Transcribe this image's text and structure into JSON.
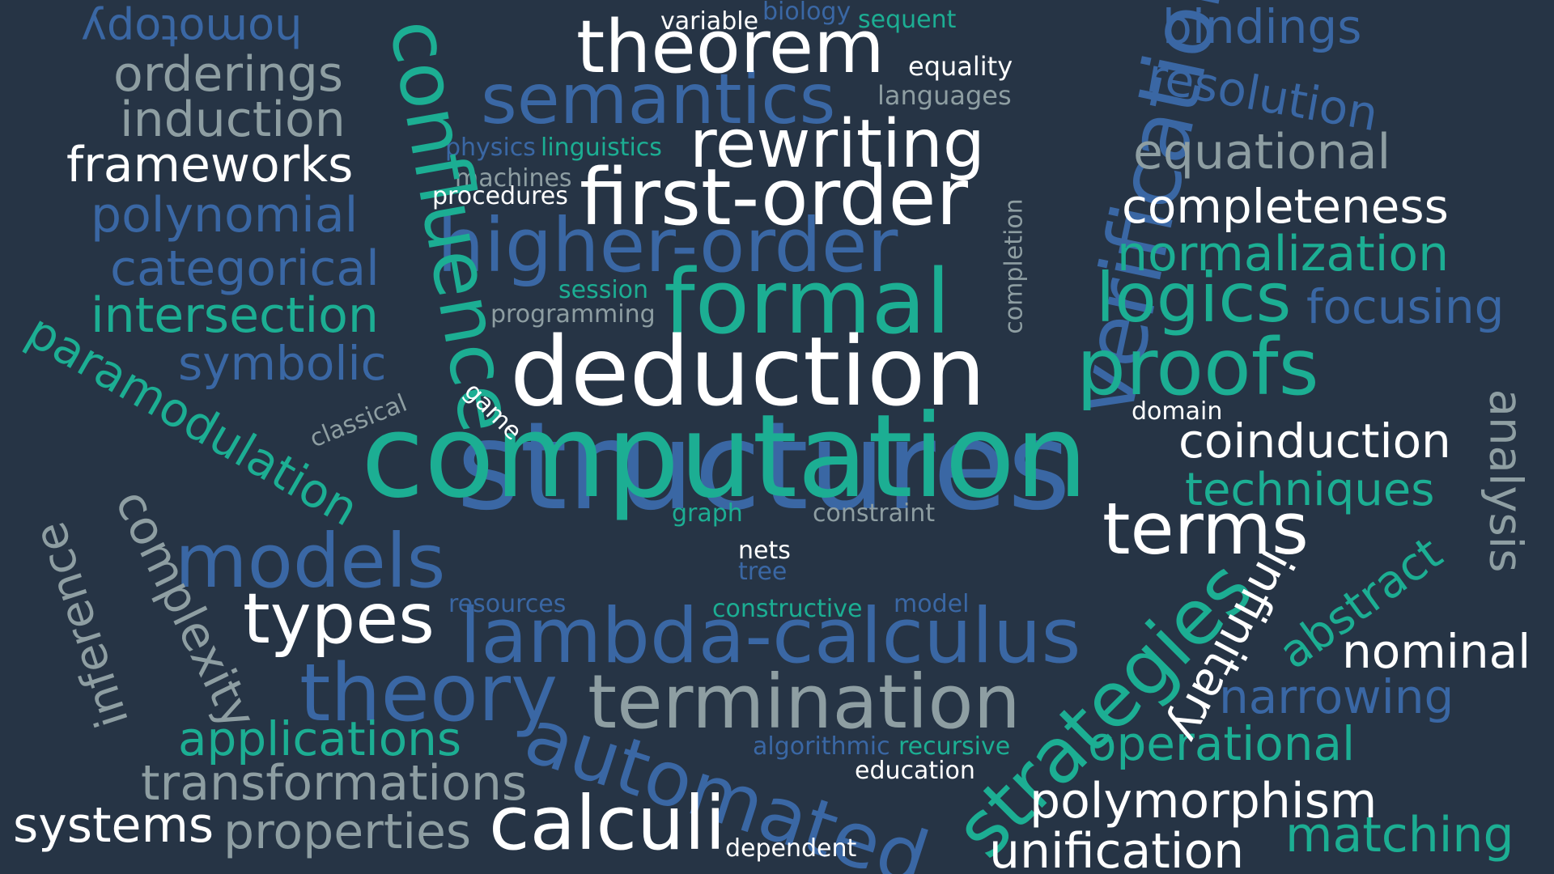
{
  "colors": {
    "background": "#263445",
    "white": "#ffffff",
    "teal": "#1cae93",
    "blue": "#3a67a4",
    "grey": "#8e9ea2"
  },
  "words": {
    "computation": "computation",
    "structures": "structures",
    "deduction": "deduction",
    "formal": "formal",
    "higher_order": "higher-order",
    "first_order": "first-order",
    "rewriting": "rewriting",
    "theorem": "theorem",
    "semantics": "semantics",
    "lambda_calculus": "lambda-calculus",
    "termination": "termination",
    "automated": "automated",
    "calculi": "calculi",
    "types": "types",
    "models": "models",
    "theory": "theory",
    "strategies": "strategies",
    "terms": "terms",
    "proofs": "proofs",
    "logics": "logics",
    "verification": "verification",
    "confluence": "confluence",
    "paramodulation": "paramodulation",
    "complexity": "complexity",
    "inference": "inference",
    "homotopy": "homotopy",
    "orderings": "orderings",
    "induction": "induction",
    "frameworks": "frameworks",
    "polynomial": "polynomial",
    "categorical": "categorical",
    "intersection": "intersection",
    "symbolic": "symbolic",
    "applications": "applications",
    "transformations": "transformations",
    "properties": "properties",
    "systems": "systems",
    "bindings": "bindings",
    "resolution": "resolution",
    "equational": "equational",
    "completeness": "completeness",
    "normalization": "normalization",
    "focusing": "focusing",
    "analysis": "analysis",
    "coinduction": "coinduction",
    "techniques": "techniques",
    "abstract": "abstract",
    "infinitary": "infinitary",
    "nominal": "nominal",
    "narrowing": "narrowing",
    "operational": "operational",
    "polymorphism": "polymorphism",
    "unification": "unification",
    "matching": "matching",
    "variable": "variable",
    "biology": "biology",
    "sequent": "sequent",
    "equality": "equality",
    "languages": "languages",
    "physics": "physics",
    "linguistics": "linguistics",
    "machines": "machines",
    "procedures": "procedures",
    "session": "session",
    "programming": "programming",
    "completion": "completion",
    "domain": "domain",
    "classical": "classical",
    "game": "game",
    "graph": "graph",
    "constraint": "constraint",
    "nets": "nets",
    "tree": "tree",
    "resources": "resources",
    "constructive": "constructive",
    "model": "model",
    "algorithmic": "algorithmic",
    "recursive": "recursive",
    "education": "education",
    "dependent": "dependent"
  }
}
